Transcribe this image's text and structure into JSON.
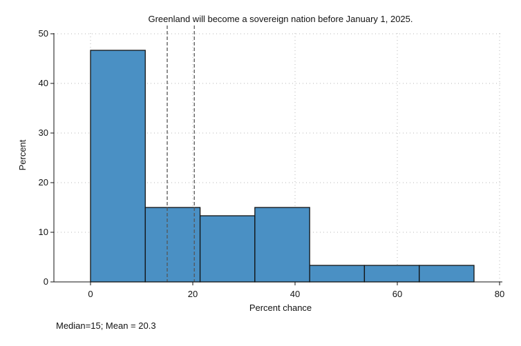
{
  "chart_data": {
    "type": "bar",
    "title": "Greenland will become a sovereign nation before January 1, 2025.",
    "xlabel": "Percent chance",
    "ylabel": "Percent",
    "xlim": [
      -7.5,
      80
    ],
    "ylim": [
      0,
      50
    ],
    "x_ticks": [
      0,
      20,
      40,
      60,
      80
    ],
    "y_ticks": [
      0,
      10,
      20,
      30,
      40,
      50
    ],
    "grid": true,
    "bins": [
      {
        "start": 0,
        "end": 10.71,
        "value": 46.67
      },
      {
        "start": 10.71,
        "end": 21.43,
        "value": 15.0
      },
      {
        "start": 21.43,
        "end": 32.14,
        "value": 13.33
      },
      {
        "start": 32.14,
        "end": 42.86,
        "value": 15.0
      },
      {
        "start": 42.86,
        "end": 53.57,
        "value": 3.33
      },
      {
        "start": 53.57,
        "end": 64.29,
        "value": 3.33
      },
      {
        "start": 64.29,
        "end": 75.0,
        "value": 3.33
      }
    ],
    "reference_lines": [
      {
        "label": "Median",
        "value": 15
      },
      {
        "label": "Mean",
        "value": 20.3
      }
    ],
    "note": "Median=15; Mean = 20.3",
    "colors": {
      "bar_fill": "#4a90c4",
      "bar_stroke": "#111111",
      "grid": "#b4b4b4",
      "reference": "#555555"
    }
  }
}
